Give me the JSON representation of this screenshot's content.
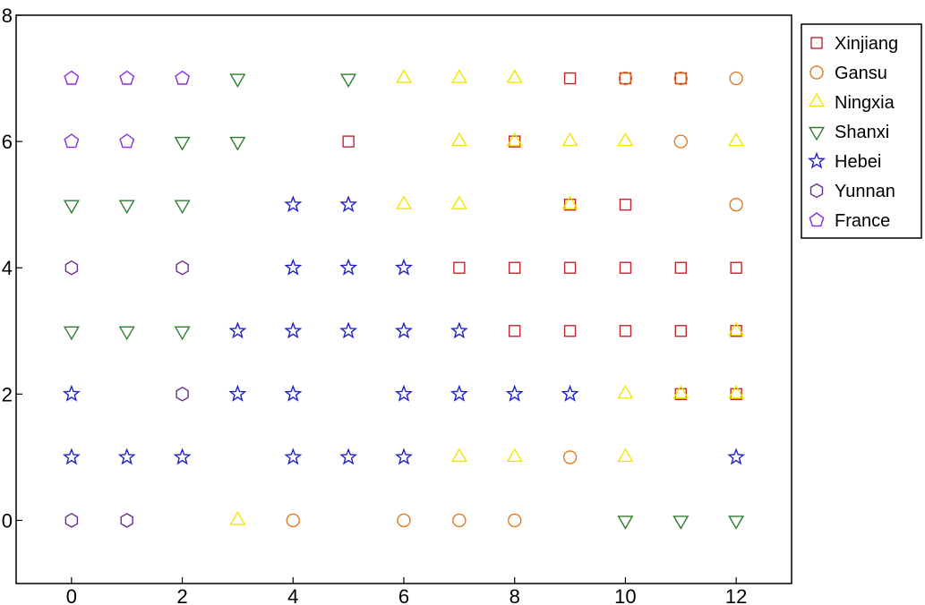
{
  "chart_data": {
    "type": "scatter",
    "title": "",
    "xlabel": "",
    "ylabel": "",
    "xlim": [
      -1,
      13
    ],
    "ylim": [
      -1,
      8
    ],
    "x_ticks": [
      0,
      2,
      4,
      6,
      8,
      10,
      12
    ],
    "y_ticks": [
      0,
      2,
      4,
      6,
      8
    ],
    "grid": false,
    "legend_position": "right",
    "series": [
      {
        "name": "Xinjiang",
        "marker": "square",
        "color": "#c0282d",
        "points": [
          [
            9,
            7
          ],
          [
            10,
            7
          ],
          [
            11,
            7
          ],
          [
            5,
            6
          ],
          [
            8,
            6
          ],
          [
            9,
            5
          ],
          [
            10,
            5
          ],
          [
            7,
            4
          ],
          [
            8,
            4
          ],
          [
            9,
            4
          ],
          [
            10,
            4
          ],
          [
            11,
            4
          ],
          [
            12,
            4
          ],
          [
            8,
            3
          ],
          [
            9,
            3
          ],
          [
            10,
            3
          ],
          [
            11,
            3
          ],
          [
            12,
            3
          ],
          [
            11,
            2
          ],
          [
            12,
            2
          ]
        ]
      },
      {
        "name": "Gansu",
        "marker": "circle",
        "color": "#e07b20",
        "points": [
          [
            10,
            7
          ],
          [
            11,
            7
          ],
          [
            12,
            7
          ],
          [
            11,
            6
          ],
          [
            12,
            5
          ],
          [
            9,
            1
          ],
          [
            4,
            0
          ],
          [
            6,
            0
          ],
          [
            7,
            0
          ],
          [
            8,
            0
          ]
        ]
      },
      {
        "name": "Ningxia",
        "marker": "triangle-up",
        "color": "#f2e600",
        "points": [
          [
            6,
            7
          ],
          [
            7,
            7
          ],
          [
            8,
            7
          ],
          [
            7,
            6
          ],
          [
            8,
            6
          ],
          [
            9,
            6
          ],
          [
            10,
            6
          ],
          [
            12,
            6
          ],
          [
            6,
            5
          ],
          [
            7,
            5
          ],
          [
            9,
            5
          ],
          [
            12,
            3
          ],
          [
            10,
            2
          ],
          [
            11,
            2
          ],
          [
            12,
            2
          ],
          [
            7,
            1
          ],
          [
            8,
            1
          ],
          [
            10,
            1
          ],
          [
            3,
            0
          ]
        ]
      },
      {
        "name": "Shanxi",
        "marker": "triangle-down",
        "color": "#2e7d2e",
        "points": [
          [
            3,
            7
          ],
          [
            5,
            7
          ],
          [
            2,
            6
          ],
          [
            3,
            6
          ],
          [
            0,
            5
          ],
          [
            1,
            5
          ],
          [
            2,
            5
          ],
          [
            0,
            3
          ],
          [
            1,
            3
          ],
          [
            2,
            3
          ],
          [
            10,
            0
          ],
          [
            11,
            0
          ],
          [
            12,
            0
          ]
        ]
      },
      {
        "name": "Hebei",
        "marker": "star",
        "color": "#2020c8",
        "points": [
          [
            4,
            5
          ],
          [
            5,
            5
          ],
          [
            4,
            4
          ],
          [
            5,
            4
          ],
          [
            6,
            4
          ],
          [
            3,
            3
          ],
          [
            4,
            3
          ],
          [
            5,
            3
          ],
          [
            6,
            3
          ],
          [
            7,
            3
          ],
          [
            0,
            2
          ],
          [
            3,
            2
          ],
          [
            4,
            2
          ],
          [
            6,
            2
          ],
          [
            7,
            2
          ],
          [
            8,
            2
          ],
          [
            9,
            2
          ],
          [
            0,
            1
          ],
          [
            1,
            1
          ],
          [
            2,
            1
          ],
          [
            4,
            1
          ],
          [
            5,
            1
          ],
          [
            6,
            1
          ],
          [
            12,
            1
          ]
        ]
      },
      {
        "name": "Yunnan",
        "marker": "hexagon",
        "color": "#6a2c8c",
        "points": [
          [
            0,
            4
          ],
          [
            2,
            4
          ],
          [
            2,
            2
          ],
          [
            0,
            0
          ],
          [
            1,
            0
          ]
        ]
      },
      {
        "name": "France",
        "marker": "pentagon",
        "color": "#8a2be2",
        "points": [
          [
            0,
            7
          ],
          [
            1,
            7
          ],
          [
            2,
            7
          ],
          [
            0,
            6
          ],
          [
            1,
            6
          ]
        ]
      }
    ]
  }
}
